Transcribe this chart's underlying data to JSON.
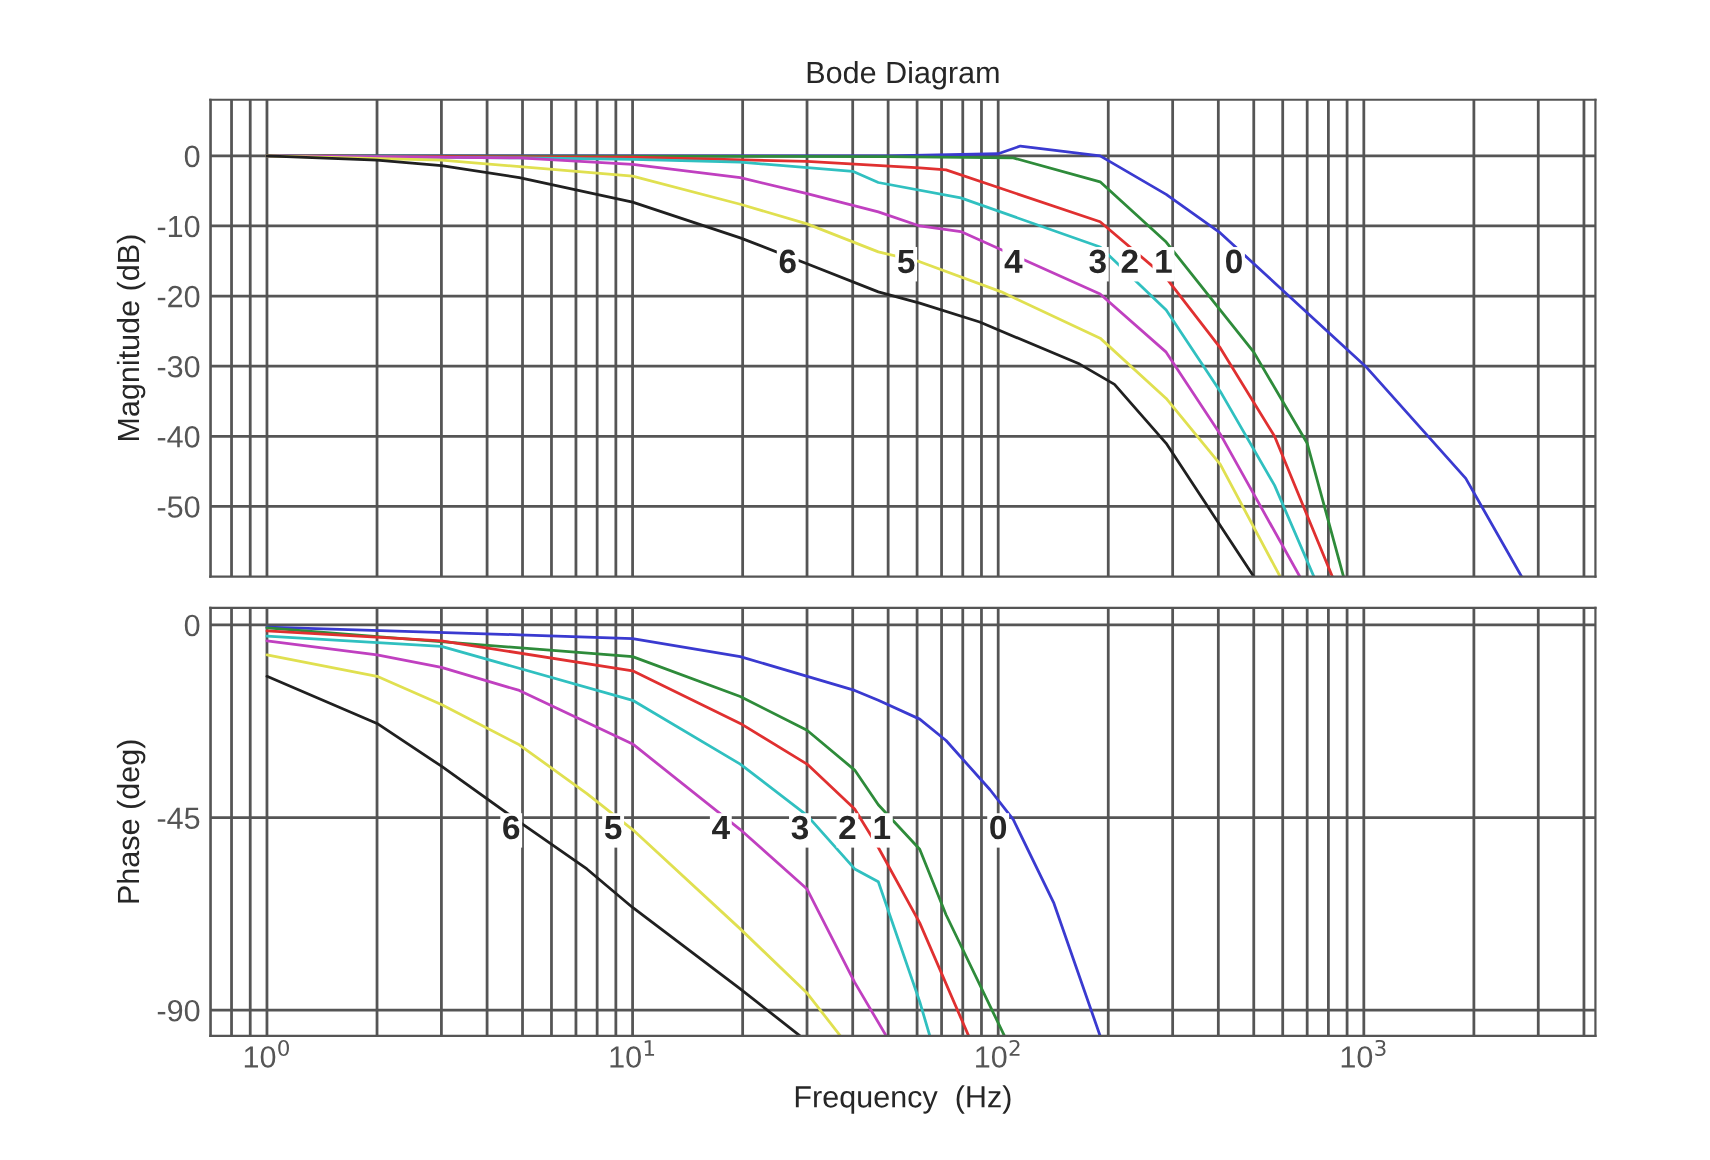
{
  "chart_data": [
    {
      "type": "line",
      "title": "Bode Diagram",
      "ylabel": "Magnitude (dB)",
      "log": "x",
      "grid": true,
      "tick_labels": "y",
      "line_style": "solid",
      "xlim": [
        0.7,
        4300
      ],
      "ylim": [
        -60,
        8
      ],
      "xticks": [
        {
          "value": 0.7,
          "label": null
        },
        {
          "value": 0.8,
          "label": null
        },
        {
          "value": 0.9,
          "label": null
        },
        {
          "value": 1,
          "label": null
        },
        {
          "value": 2,
          "label": null
        },
        {
          "value": 3,
          "label": null
        },
        {
          "value": 4,
          "label": null
        },
        {
          "value": 5,
          "label": null
        },
        {
          "value": 6,
          "label": null
        },
        {
          "value": 7,
          "label": null
        },
        {
          "value": 8,
          "label": null
        },
        {
          "value": 9,
          "label": null
        },
        {
          "value": 10,
          "label": null
        },
        {
          "value": 20,
          "label": null
        },
        {
          "value": 30,
          "label": null
        },
        {
          "value": 40,
          "label": null
        },
        {
          "value": 50,
          "label": null
        },
        {
          "value": 60,
          "label": null
        },
        {
          "value": 70,
          "label": null
        },
        {
          "value": 80,
          "label": null
        },
        {
          "value": 90,
          "label": null
        },
        {
          "value": 100,
          "label": null
        },
        {
          "value": 200,
          "label": null
        },
        {
          "value": 300,
          "label": null
        },
        {
          "value": 400,
          "label": null
        },
        {
          "value": 500,
          "label": null
        },
        {
          "value": 600,
          "label": null
        },
        {
          "value": 700,
          "label": null
        },
        {
          "value": 800,
          "label": null
        },
        {
          "value": 900,
          "label": null
        },
        {
          "value": 1000,
          "label": null
        },
        {
          "value": 2000,
          "label": null
        },
        {
          "value": 3000,
          "label": null
        },
        {
          "value": 4000,
          "label": null
        }
      ],
      "yticks": [
        0,
        -10,
        -20,
        -30,
        -40,
        -50
      ],
      "series": [
        {
          "name": "0",
          "color": "#3a3ad0",
          "x": [
            1,
            50,
            100,
            115,
            190,
            288,
            405,
            1010,
            1900,
            2700
          ],
          "values": [
            0,
            0,
            0.3,
            1.4,
            0,
            -5.5,
            -11,
            -30,
            -46,
            -60
          ]
        },
        {
          "name": "1",
          "color": "#2e8b3a",
          "x": [
            1,
            50,
            110,
            190,
            288,
            405,
            500,
            700,
            880
          ],
          "values": [
            0,
            -0.1,
            -0.3,
            -3.7,
            -12.3,
            -22,
            -28,
            -41,
            -60
          ]
        },
        {
          "name": "2",
          "color": "#e03030",
          "x": [
            1,
            10,
            30,
            61,
            72,
            190,
            288,
            405,
            570,
            820
          ],
          "values": [
            0,
            -0.2,
            -0.8,
            -1.7,
            -2,
            -9.4,
            -17.4,
            -27.4,
            -40,
            -60
          ]
        },
        {
          "name": "3",
          "color": "#30c0c0",
          "x": [
            1,
            5,
            10,
            19.7,
            40,
            47,
            79,
            190,
            288,
            405,
            570,
            730
          ],
          "values": [
            0,
            -0.3,
            -0.5,
            -0.9,
            -2.2,
            -3.8,
            -6,
            -13,
            -22,
            -33.6,
            -47,
            -60
          ]
        },
        {
          "name": "4",
          "color": "#c040c0",
          "x": [
            1,
            4.9,
            10,
            19.7,
            30,
            47,
            61,
            79,
            190,
            288,
            405,
            668
          ],
          "values": [
            0,
            -0.3,
            -1.2,
            -3.1,
            -5.4,
            -8,
            -10,
            -10.8,
            -19.7,
            -28,
            -39.7,
            -60
          ]
        },
        {
          "name": "5",
          "color": "#e0e050",
          "x": [
            1,
            3,
            10,
            19.7,
            30,
            47,
            61,
            102,
            190,
            288,
            405,
            590
          ],
          "values": [
            0,
            -0.6,
            -2.9,
            -6.9,
            -9.7,
            -13.7,
            -15.1,
            -19.4,
            -26,
            -34.6,
            -44,
            -60
          ]
        },
        {
          "name": "6",
          "color": "#202020",
          "x": [
            1,
            2,
            3,
            4.9,
            10,
            19.7,
            30,
            47,
            61,
            89,
            167,
            208,
            288,
            500
          ],
          "values": [
            0,
            -0.6,
            -1.4,
            -3.1,
            -6.6,
            -11.7,
            -15.4,
            -19.4,
            -21,
            -23.7,
            -29.7,
            -32.6,
            -41,
            -60
          ]
        }
      ]
    },
    {
      "type": "line",
      "xlabel": "Frequency  (Hz)",
      "ylabel": "Phase (deg)",
      "log": "x",
      "grid": true,
      "line_style": "solid",
      "xlim": [
        0.7,
        4300
      ],
      "ylim": [
        -96,
        4
      ],
      "xticks": [
        {
          "value": 0.7,
          "label": null
        },
        {
          "value": 0.8,
          "label": null
        },
        {
          "value": 0.9,
          "label": null
        },
        {
          "value": 1,
          "label": "10$^{0}$"
        },
        {
          "value": 2,
          "label": null
        },
        {
          "value": 3,
          "label": null
        },
        {
          "value": 4,
          "label": null
        },
        {
          "value": 5,
          "label": null
        },
        {
          "value": 6,
          "label": null
        },
        {
          "value": 7,
          "label": null
        },
        {
          "value": 8,
          "label": null
        },
        {
          "value": 9,
          "label": null
        },
        {
          "value": 10,
          "label": "10$^{1}$"
        },
        {
          "value": 20,
          "label": null
        },
        {
          "value": 30,
          "label": null
        },
        {
          "value": 40,
          "label": null
        },
        {
          "value": 50,
          "label": null
        },
        {
          "value": 60,
          "label": null
        },
        {
          "value": 70,
          "label": null
        },
        {
          "value": 80,
          "label": null
        },
        {
          "value": 90,
          "label": null
        },
        {
          "value": 100,
          "label": "10$^{2}$"
        },
        {
          "value": 200,
          "label": null
        },
        {
          "value": 300,
          "label": null
        },
        {
          "value": 400,
          "label": null
        },
        {
          "value": 500,
          "label": null
        },
        {
          "value": 600,
          "label": null
        },
        {
          "value": 700,
          "label": null
        },
        {
          "value": 800,
          "label": null
        },
        {
          "value": 900,
          "label": null
        },
        {
          "value": 1000,
          "label": "10$^{3}$"
        },
        {
          "value": 2000,
          "label": null
        },
        {
          "value": 3000,
          "label": null
        },
        {
          "value": 4000,
          "label": null
        }
      ],
      "yticks": [
        0,
        -45,
        -90
      ],
      "series": [
        {
          "name": "0",
          "color": "#3a3ad0",
          "x": [
            1,
            4.9,
            10,
            19.7,
            40.5,
            47,
            61,
            72,
            95,
            110,
            142,
            190
          ],
          "values": [
            -0.5,
            -2.3,
            -3.2,
            -7.4,
            -15.3,
            -17.6,
            -22,
            -27,
            -38.5,
            -45.5,
            -65,
            -96
          ]
        },
        {
          "name": "1",
          "color": "#2e8b3a",
          "x": [
            1,
            10,
            19.7,
            30,
            40.5,
            47,
            61,
            72,
            104
          ],
          "values": [
            -0.7,
            -7.4,
            -16.7,
            -24.6,
            -33.9,
            -42,
            -52.4,
            -67.7,
            -96
          ]
        },
        {
          "name": "2",
          "color": "#e03030",
          "x": [
            1,
            3,
            10,
            19.7,
            30,
            40.5,
            47,
            61,
            83
          ],
          "values": [
            -1.4,
            -3.7,
            -10.7,
            -23,
            -32.5,
            -43,
            -52,
            -69.6,
            -96
          ]
        },
        {
          "name": "3",
          "color": "#30c0c0",
          "x": [
            1,
            3,
            10,
            19.7,
            30,
            40.5,
            47,
            61,
            65
          ],
          "values": [
            -2.6,
            -5,
            -17.6,
            -32.5,
            -44.5,
            -57,
            -60,
            -88,
            -96
          ]
        },
        {
          "name": "4",
          "color": "#c040c0",
          "x": [
            1,
            2,
            3,
            4.9,
            10,
            19.7,
            30,
            40.5,
            49.4
          ],
          "values": [
            -3.7,
            -7,
            -9.9,
            -15.3,
            -27.8,
            -47.8,
            -61.7,
            -83.5,
            -96
          ]
        },
        {
          "name": "5",
          "color": "#e0e050",
          "x": [
            1,
            2,
            3,
            4.9,
            7.5,
            10,
            19.7,
            30,
            37
          ],
          "values": [
            -7,
            -12,
            -18.6,
            -28,
            -39.4,
            -47.8,
            -71,
            -86,
            -96
          ]
        },
        {
          "name": "6",
          "color": "#202020",
          "x": [
            1,
            2,
            3,
            4.9,
            7.5,
            10,
            19.7,
            28.7
          ],
          "values": [
            -12,
            -23,
            -33,
            -46,
            -57,
            -66,
            -85,
            -96
          ]
        }
      ]
    }
  ]
}
